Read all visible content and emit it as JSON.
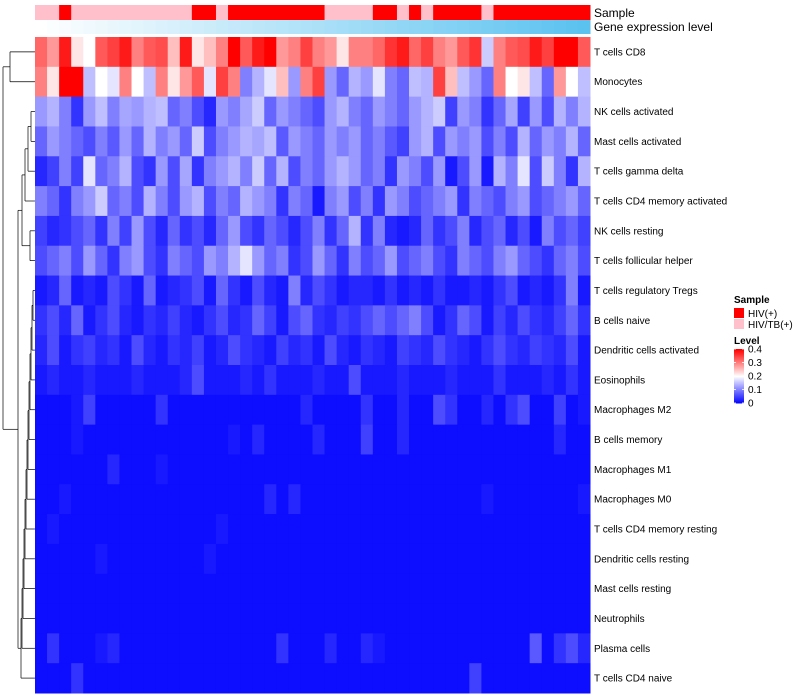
{
  "chart_data": {
    "type": "heatmap",
    "title": "",
    "n_columns": 46,
    "rows": [
      "T cells CD8",
      "Monocytes",
      "NK cells activated",
      "Mast cells activated",
      "T cells gamma delta",
      "T cells CD4 memory activated",
      "NK cells resting",
      "T cells follicular helper",
      "T cells regulatory  Tregs",
      "B cells naive",
      "Dendritic cells activated",
      "Eosinophils",
      "Macrophages M2",
      "B cells memory",
      "Macrophages M1",
      "Macrophages M0",
      "T cells CD4 memory resting",
      "Dendritic cells resting",
      "Mast cells resting",
      "Neutrophils",
      "Plasma cells",
      "T cells CD4 naive"
    ],
    "annotations": {
      "sample": {
        "label": "Sample",
        "values": [
          1,
          1,
          0,
          1,
          1,
          1,
          1,
          1,
          1,
          1,
          1,
          1,
          1,
          0,
          0,
          1,
          0,
          0,
          0,
          0,
          0,
          0,
          0,
          0,
          1,
          1,
          1,
          1,
          0,
          0,
          1,
          0,
          1,
          0,
          0,
          0,
          0,
          1,
          0,
          0,
          0,
          0,
          0,
          0,
          0,
          0
        ]
      },
      "expression": {
        "label": "Gene expression level",
        "start_color": "#ffffff",
        "end_color": "#5bc2f0"
      }
    },
    "values": [
      [
        0.32,
        0.28,
        0.38,
        0.22,
        0.2,
        0.33,
        0.35,
        0.38,
        0.3,
        0.33,
        0.34,
        0.25,
        0.38,
        0.22,
        0.25,
        0.3,
        0.4,
        0.33,
        0.38,
        0.4,
        0.28,
        0.3,
        0.35,
        0.3,
        0.28,
        0.22,
        0.3,
        0.3,
        0.32,
        0.36,
        0.38,
        0.32,
        0.35,
        0.3,
        0.28,
        0.33,
        0.36,
        0.16,
        0.3,
        0.33,
        0.34,
        0.38,
        0.35,
        0.4,
        0.4,
        0.33
      ],
      [
        0.3,
        0.22,
        0.4,
        0.4,
        0.15,
        0.2,
        0.18,
        0.3,
        0.2,
        0.15,
        0.3,
        0.22,
        0.28,
        0.33,
        0.18,
        0.35,
        0.3,
        0.1,
        0.14,
        0.18,
        0.25,
        0.12,
        0.3,
        0.35,
        0.12,
        0.08,
        0.14,
        0.12,
        0.18,
        0.1,
        0.08,
        0.15,
        0.14,
        0.35,
        0.25,
        0.15,
        0.12,
        0.08,
        0.3,
        0.2,
        0.22,
        0.15,
        0.08,
        0.28,
        0.2,
        0.15
      ],
      [
        0.12,
        0.14,
        0.1,
        0.04,
        0.12,
        0.15,
        0.1,
        0.13,
        0.12,
        0.14,
        0.15,
        0.08,
        0.1,
        0.06,
        0.03,
        0.12,
        0.1,
        0.13,
        0.16,
        0.08,
        0.12,
        0.1,
        0.08,
        0.06,
        0.12,
        0.14,
        0.1,
        0.08,
        0.12,
        0.1,
        0.08,
        0.12,
        0.14,
        0.16,
        0.05,
        0.12,
        0.1,
        0.04,
        0.08,
        0.13,
        0.05,
        0.12,
        0.06,
        0.14,
        0.1,
        0.14
      ],
      [
        0.08,
        0.12,
        0.1,
        0.08,
        0.06,
        0.1,
        0.07,
        0.12,
        0.08,
        0.14,
        0.1,
        0.12,
        0.08,
        0.16,
        0.06,
        0.1,
        0.12,
        0.14,
        0.13,
        0.15,
        0.07,
        0.12,
        0.1,
        0.08,
        0.12,
        0.1,
        0.12,
        0.08,
        0.1,
        0.07,
        0.05,
        0.12,
        0.14,
        0.06,
        0.12,
        0.1,
        0.12,
        0.06,
        0.1,
        0.06,
        0.14,
        0.08,
        0.12,
        0.1,
        0.14,
        0.08
      ],
      [
        0.03,
        0.05,
        0.1,
        0.05,
        0.18,
        0.08,
        0.1,
        0.14,
        0.06,
        0.04,
        0.12,
        0.06,
        0.13,
        0.04,
        0.1,
        0.12,
        0.14,
        0.1,
        0.16,
        0.08,
        0.14,
        0.06,
        0.1,
        0.08,
        0.12,
        0.14,
        0.12,
        0.08,
        0.1,
        0.04,
        0.12,
        0.1,
        0.06,
        0.12,
        0.02,
        0.06,
        0.12,
        0.02,
        0.14,
        0.1,
        0.18,
        0.06,
        0.16,
        0.1,
        0.04,
        0.14
      ],
      [
        0.1,
        0.08,
        0.04,
        0.1,
        0.12,
        0.16,
        0.08,
        0.1,
        0.06,
        0.14,
        0.1,
        0.06,
        0.12,
        0.14,
        0.06,
        0.1,
        0.08,
        0.14,
        0.12,
        0.1,
        0.04,
        0.1,
        0.08,
        0.02,
        0.1,
        0.12,
        0.06,
        0.1,
        0.04,
        0.12,
        0.1,
        0.06,
        0.08,
        0.1,
        0.12,
        0.04,
        0.1,
        0.08,
        0.06,
        0.1,
        0.12,
        0.06,
        0.08,
        0.1,
        0.12,
        0.08
      ],
      [
        0.05,
        0.03,
        0.04,
        0.06,
        0.08,
        0.04,
        0.1,
        0.05,
        0.12,
        0.06,
        0.03,
        0.08,
        0.04,
        0.06,
        0.03,
        0.08,
        0.12,
        0.06,
        0.04,
        0.08,
        0.06,
        0.03,
        0.06,
        0.1,
        0.04,
        0.08,
        0.14,
        0.04,
        0.1,
        0.03,
        0.02,
        0.03,
        0.08,
        0.04,
        0.06,
        0.1,
        0.03,
        0.06,
        0.08,
        0.03,
        0.06,
        0.02,
        0.1,
        0.06,
        0.08,
        0.05
      ],
      [
        0.06,
        0.08,
        0.1,
        0.06,
        0.12,
        0.08,
        0.04,
        0.1,
        0.12,
        0.06,
        0.04,
        0.1,
        0.08,
        0.06,
        0.12,
        0.1,
        0.14,
        0.18,
        0.12,
        0.08,
        0.1,
        0.04,
        0.06,
        0.12,
        0.08,
        0.04,
        0.1,
        0.06,
        0.08,
        0.12,
        0.06,
        0.08,
        0.1,
        0.06,
        0.04,
        0.1,
        0.08,
        0.06,
        0.1,
        0.12,
        0.08,
        0.06,
        0.04,
        0.08,
        0.1,
        0.06
      ],
      [
        0.02,
        0.03,
        0.08,
        0.02,
        0.03,
        0.02,
        0.06,
        0.04,
        0.02,
        0.08,
        0.02,
        0.03,
        0.04,
        0.06,
        0.02,
        0.08,
        0.04,
        0.02,
        0.06,
        0.03,
        0.02,
        0.1,
        0.03,
        0.06,
        0.04,
        0.02,
        0.03,
        0.03,
        0.02,
        0.04,
        0.02,
        0.03,
        0.02,
        0.04,
        0.02,
        0.02,
        0.03,
        0.02,
        0.04,
        0.06,
        0.02,
        0.03,
        0.02,
        0.04,
        0.1,
        0.02
      ],
      [
        0.04,
        0.06,
        0.03,
        0.08,
        0.02,
        0.04,
        0.06,
        0.03,
        0.02,
        0.04,
        0.03,
        0.05,
        0.03,
        0.02,
        0.04,
        0.06,
        0.03,
        0.04,
        0.08,
        0.05,
        0.02,
        0.06,
        0.08,
        0.04,
        0.03,
        0.05,
        0.04,
        0.06,
        0.08,
        0.06,
        0.08,
        0.1,
        0.06,
        0.02,
        0.04,
        0.08,
        0.06,
        0.02,
        0.05,
        0.03,
        0.06,
        0.04,
        0.03,
        0.05,
        0.08,
        0.04
      ],
      [
        0.03,
        0.06,
        0.02,
        0.04,
        0.05,
        0.03,
        0.04,
        0.02,
        0.06,
        0.03,
        0.02,
        0.04,
        0.03,
        0.05,
        0.02,
        0.03,
        0.06,
        0.04,
        0.03,
        0.02,
        0.05,
        0.03,
        0.04,
        0.02,
        0.06,
        0.03,
        0.02,
        0.04,
        0.03,
        0.02,
        0.05,
        0.04,
        0.03,
        0.06,
        0.04,
        0.03,
        0.02,
        0.04,
        0.06,
        0.04,
        0.03,
        0.05,
        0.04,
        0.03,
        0.06,
        0.02
      ],
      [
        0.02,
        0.03,
        0.02,
        0.02,
        0.03,
        0.02,
        0.02,
        0.02,
        0.03,
        0.02,
        0.02,
        0.02,
        0.03,
        0.06,
        0.02,
        0.02,
        0.02,
        0.03,
        0.02,
        0.04,
        0.02,
        0.02,
        0.02,
        0.03,
        0.02,
        0.02,
        0.06,
        0.02,
        0.02,
        0.02,
        0.03,
        0.02,
        0.02,
        0.02,
        0.03,
        0.02,
        0.02,
        0.02,
        0.04,
        0.02,
        0.02,
        0.02,
        0.03,
        0.02,
        0.04,
        0.02
      ],
      [
        0.01,
        0.01,
        0.01,
        0.02,
        0.05,
        0.01,
        0.01,
        0.01,
        0.01,
        0.01,
        0.04,
        0.01,
        0.01,
        0.01,
        0.01,
        0.01,
        0.01,
        0.01,
        0.01,
        0.01,
        0.01,
        0.01,
        0.03,
        0.01,
        0.01,
        0.01,
        0.01,
        0.04,
        0.01,
        0.01,
        0.03,
        0.01,
        0.01,
        0.06,
        0.04,
        0.01,
        0.01,
        0.03,
        0.01,
        0.04,
        0.06,
        0.01,
        0.01,
        0.05,
        0.01,
        0.02
      ],
      [
        0.01,
        0.01,
        0.01,
        0.02,
        0.01,
        0.01,
        0.01,
        0.01,
        0.01,
        0.01,
        0.01,
        0.01,
        0.01,
        0.01,
        0.01,
        0.01,
        0.02,
        0.01,
        0.03,
        0.01,
        0.01,
        0.01,
        0.01,
        0.03,
        0.01,
        0.01,
        0.01,
        0.05,
        0.01,
        0.01,
        0.03,
        0.01,
        0.01,
        0.01,
        0.01,
        0.01,
        0.01,
        0.01,
        0.01,
        0.01,
        0.01,
        0.01,
        0.01,
        0.03,
        0.01,
        0.01
      ],
      [
        0.01,
        0.01,
        0.01,
        0.01,
        0.01,
        0.01,
        0.03,
        0.01,
        0.01,
        0.01,
        0.02,
        0.01,
        0.01,
        0.01,
        0.01,
        0.01,
        0.01,
        0.01,
        0.01,
        0.01,
        0.01,
        0.01,
        0.01,
        0.01,
        0.01,
        0.01,
        0.01,
        0.01,
        0.01,
        0.01,
        0.01,
        0.01,
        0.01,
        0.01,
        0.01,
        0.01,
        0.01,
        0.01,
        0.01,
        0.01,
        0.01,
        0.01,
        0.01,
        0.01,
        0.01,
        0.01
      ],
      [
        0.01,
        0.01,
        0.02,
        0.01,
        0.01,
        0.01,
        0.01,
        0.01,
        0.01,
        0.01,
        0.01,
        0.01,
        0.01,
        0.01,
        0.01,
        0.01,
        0.01,
        0.01,
        0.01,
        0.03,
        0.01,
        0.03,
        0.01,
        0.01,
        0.01,
        0.01,
        0.01,
        0.01,
        0.01,
        0.01,
        0.01,
        0.01,
        0.01,
        0.01,
        0.01,
        0.01,
        0.01,
        0.02,
        0.01,
        0.01,
        0.01,
        0.01,
        0.01,
        0.01,
        0.01,
        0.02
      ],
      [
        0.01,
        0.02,
        0.01,
        0.01,
        0.01,
        0.01,
        0.01,
        0.01,
        0.01,
        0.01,
        0.01,
        0.01,
        0.01,
        0.01,
        0.01,
        0.02,
        0.01,
        0.01,
        0.01,
        0.01,
        0.01,
        0.01,
        0.01,
        0.01,
        0.01,
        0.01,
        0.01,
        0.01,
        0.01,
        0.01,
        0.01,
        0.01,
        0.01,
        0.01,
        0.01,
        0.01,
        0.01,
        0.01,
        0.01,
        0.01,
        0.01,
        0.01,
        0.01,
        0.01,
        0.01,
        0.01
      ],
      [
        0.01,
        0.01,
        0.01,
        0.01,
        0.01,
        0.02,
        0.01,
        0.01,
        0.01,
        0.01,
        0.01,
        0.01,
        0.01,
        0.01,
        0.02,
        0.01,
        0.01,
        0.01,
        0.01,
        0.01,
        0.01,
        0.01,
        0.01,
        0.01,
        0.01,
        0.01,
        0.01,
        0.01,
        0.01,
        0.01,
        0.01,
        0.01,
        0.01,
        0.01,
        0.01,
        0.01,
        0.01,
        0.01,
        0.01,
        0.01,
        0.01,
        0.01,
        0.01,
        0.01,
        0.01,
        0.01
      ],
      [
        0.01,
        0.01,
        0.01,
        0.01,
        0.01,
        0.01,
        0.01,
        0.01,
        0.01,
        0.01,
        0.01,
        0.01,
        0.01,
        0.01,
        0.01,
        0.01,
        0.01,
        0.01,
        0.01,
        0.01,
        0.01,
        0.01,
        0.01,
        0.01,
        0.01,
        0.01,
        0.01,
        0.01,
        0.01,
        0.01,
        0.01,
        0.01,
        0.01,
        0.01,
        0.01,
        0.01,
        0.01,
        0.01,
        0.01,
        0.01,
        0.01,
        0.01,
        0.01,
        0.01,
        0.01,
        0.01
      ],
      [
        0.01,
        0.01,
        0.01,
        0.01,
        0.01,
        0.01,
        0.01,
        0.01,
        0.01,
        0.01,
        0.01,
        0.01,
        0.01,
        0.01,
        0.01,
        0.01,
        0.01,
        0.01,
        0.01,
        0.01,
        0.01,
        0.01,
        0.01,
        0.01,
        0.01,
        0.01,
        0.01,
        0.01,
        0.01,
        0.01,
        0.01,
        0.01,
        0.01,
        0.01,
        0.01,
        0.01,
        0.01,
        0.01,
        0.01,
        0.01,
        0.01,
        0.01,
        0.01,
        0.01,
        0.01,
        0.01
      ],
      [
        0.01,
        0.04,
        0.01,
        0.01,
        0.01,
        0.02,
        0.03,
        0.01,
        0.01,
        0.01,
        0.01,
        0.01,
        0.01,
        0.01,
        0.01,
        0.01,
        0.01,
        0.01,
        0.01,
        0.01,
        0.04,
        0.01,
        0.01,
        0.01,
        0.03,
        0.01,
        0.01,
        0.03,
        0.02,
        0.01,
        0.01,
        0.01,
        0.01,
        0.01,
        0.01,
        0.01,
        0.01,
        0.01,
        0.01,
        0.01,
        0.01,
        0.07,
        0.01,
        0.04,
        0.06,
        0.03
      ],
      [
        0.01,
        0.01,
        0.01,
        0.04,
        0.01,
        0.01,
        0.01,
        0.01,
        0.01,
        0.01,
        0.01,
        0.01,
        0.01,
        0.01,
        0.01,
        0.01,
        0.01,
        0.01,
        0.01,
        0.01,
        0.01,
        0.01,
        0.01,
        0.01,
        0.01,
        0.01,
        0.01,
        0.01,
        0.01,
        0.01,
        0.01,
        0.01,
        0.01,
        0.01,
        0.01,
        0.01,
        0.05,
        0.01,
        0.01,
        0.01,
        0.01,
        0.01,
        0.01,
        0.01,
        0.01,
        0.01
      ]
    ],
    "color_scale": {
      "min": 0,
      "max": 0.4,
      "stops": [
        {
          "value": 0,
          "color": "#0000ff"
        },
        {
          "value": 0.2,
          "color": "#ffffff"
        },
        {
          "value": 0.4,
          "color": "#ff0000"
        }
      ]
    },
    "legend": {
      "sample_title": "Sample",
      "sample_entries": [
        {
          "label": "HIV(+)",
          "color": "#ff0000"
        },
        {
          "label": "HIV/TB(+)",
          "color": "#ffc0cb"
        }
      ],
      "level_title": "Level",
      "level_ticks": [
        {
          "value": 0.4,
          "label": "0.4"
        },
        {
          "value": 0.3,
          "label": "0.3"
        },
        {
          "value": 0.2,
          "label": "0.2"
        },
        {
          "value": 0.1,
          "label": "0.1"
        },
        {
          "value": 0,
          "label": "0"
        }
      ]
    }
  }
}
